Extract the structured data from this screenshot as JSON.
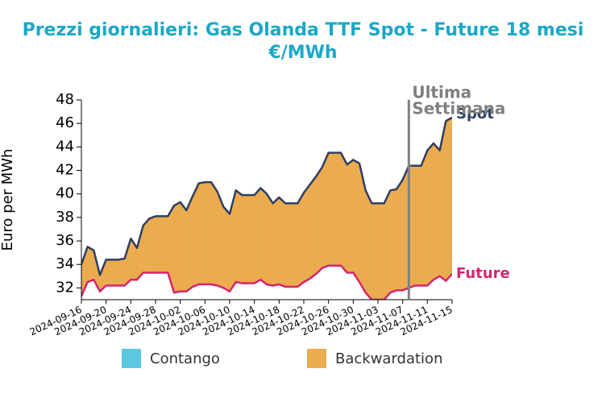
{
  "chart_data": {
    "type": "line",
    "title": "Prezzi giornalieri: Gas Olanda TTF Spot - Future 18 mesi",
    "subtitle": "€/MWh",
    "y_label": "Euro per MWh",
    "x": [
      "2024-09-16",
      "2024-09-17",
      "2024-09-18",
      "2024-09-19",
      "2024-09-20",
      "2024-09-21",
      "2024-09-22",
      "2024-09-23",
      "2024-09-24",
      "2024-09-25",
      "2024-09-26",
      "2024-09-27",
      "2024-09-28",
      "2024-09-29",
      "2024-09-30",
      "2024-10-01",
      "2024-10-02",
      "2024-10-03",
      "2024-10-04",
      "2024-10-05",
      "2024-10-06",
      "2024-10-07",
      "2024-10-08",
      "2024-10-09",
      "2024-10-10",
      "2024-10-11",
      "2024-10-12",
      "2024-10-13",
      "2024-10-14",
      "2024-10-15",
      "2024-10-16",
      "2024-10-17",
      "2024-10-18",
      "2024-10-19",
      "2024-10-20",
      "2024-10-21",
      "2024-10-22",
      "2024-10-23",
      "2024-10-24",
      "2024-10-25",
      "2024-10-26",
      "2024-10-27",
      "2024-10-28",
      "2024-10-29",
      "2024-10-30",
      "2024-10-31",
      "2024-11-01",
      "2024-11-02",
      "2024-11-03",
      "2024-11-04",
      "2024-11-05",
      "2024-11-06",
      "2024-11-07",
      "2024-11-08",
      "2024-11-09",
      "2024-11-10",
      "2024-11-11",
      "2024-11-12",
      "2024-11-13",
      "2024-11-14",
      "2024-11-15"
    ],
    "series": [
      {
        "name": "Spot",
        "color": "#2e3f63",
        "values": [
          34.0,
          35.5,
          35.2,
          33.1,
          34.4,
          34.4,
          34.4,
          34.5,
          36.2,
          35.4,
          37.3,
          37.9,
          38.1,
          38.1,
          38.1,
          39.0,
          39.3,
          38.6,
          39.8,
          40.9,
          41.0,
          41.0,
          40.2,
          38.9,
          38.3,
          40.3,
          39.9,
          39.9,
          39.9,
          40.5,
          40.0,
          39.2,
          39.7,
          39.2,
          39.2,
          39.2,
          40.1,
          40.8,
          41.5,
          42.3,
          43.5,
          43.5,
          43.5,
          42.5,
          42.9,
          42.6,
          40.3,
          39.2,
          39.2,
          39.2,
          40.3,
          40.4,
          41.2,
          42.4,
          42.4,
          42.4,
          43.7,
          44.3,
          43.7,
          46.2,
          46.5
        ]
      },
      {
        "name": "Future",
        "color": "#d6246e",
        "values": [
          31.3,
          32.5,
          32.7,
          31.7,
          32.2,
          32.2,
          32.2,
          32.2,
          32.7,
          32.7,
          33.3,
          33.3,
          33.3,
          33.3,
          33.3,
          31.6,
          31.7,
          31.7,
          32.1,
          32.3,
          32.3,
          32.3,
          32.2,
          32.0,
          31.7,
          32.5,
          32.4,
          32.4,
          32.4,
          32.7,
          32.3,
          32.2,
          32.3,
          32.1,
          32.1,
          32.1,
          32.5,
          32.8,
          33.2,
          33.7,
          33.9,
          33.9,
          33.9,
          33.3,
          33.3,
          32.5,
          31.6,
          31.0,
          31.0,
          31.0,
          31.6,
          31.8,
          31.8,
          32.0,
          32.2,
          32.2,
          32.2,
          32.7,
          33.0,
          32.6,
          33.2
        ]
      }
    ],
    "fill_legend": [
      {
        "name": "Contango",
        "color": "#5bc8e0"
      },
      {
        "name": "Backwardation",
        "color": "#ebab4f"
      }
    ],
    "annotation": {
      "lines": [
        "Ultima",
        "Settimana"
      ],
      "x": "2024-11-08",
      "color": "#808080"
    },
    "xlim": [
      "2024-09-16",
      "2024-11-15"
    ],
    "xticks": [
      "2024-09-16",
      "2024-09-20",
      "2024-09-24",
      "2024-09-28",
      "2024-10-02",
      "2024-10-06",
      "2024-10-10",
      "2024-10-14",
      "2024-10-18",
      "2024-10-22",
      "2024-10-26",
      "2024-10-30",
      "2024-11-03",
      "2024-11-07",
      "2024-11-11",
      "2024-11-15"
    ],
    "ylim": [
      31,
      48
    ],
    "yticks": [
      32,
      34,
      36,
      38,
      40,
      42,
      44,
      46,
      48
    ],
    "grid": false
  }
}
